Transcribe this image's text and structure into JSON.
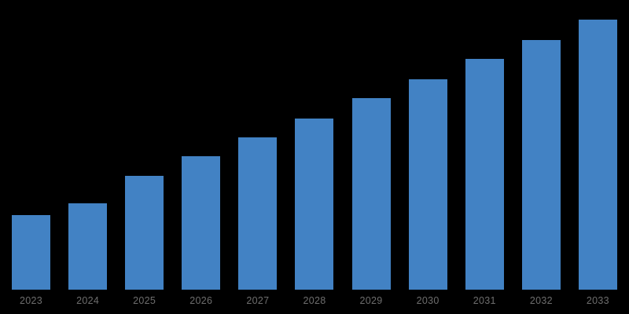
{
  "chart_data": {
    "type": "bar",
    "title": "",
    "xlabel": "",
    "ylabel": "",
    "categories": [
      "2023",
      "2024",
      "2025",
      "2026",
      "2027",
      "2028",
      "2029",
      "2030",
      "2031",
      "2032",
      "2033"
    ],
    "values": [
      27.6,
      31.9,
      42.1,
      49.3,
      56.4,
      63.4,
      70.8,
      77.9,
      85.3,
      92.4,
      100
    ],
    "units": "relative height, percent of tallest bar (no y-axis or data labels shown)",
    "ylim": [
      0,
      100
    ],
    "grid": false,
    "legend": null,
    "bar_color": "#4282C4",
    "label_color": "#6E6E6E",
    "background": "#000000"
  }
}
